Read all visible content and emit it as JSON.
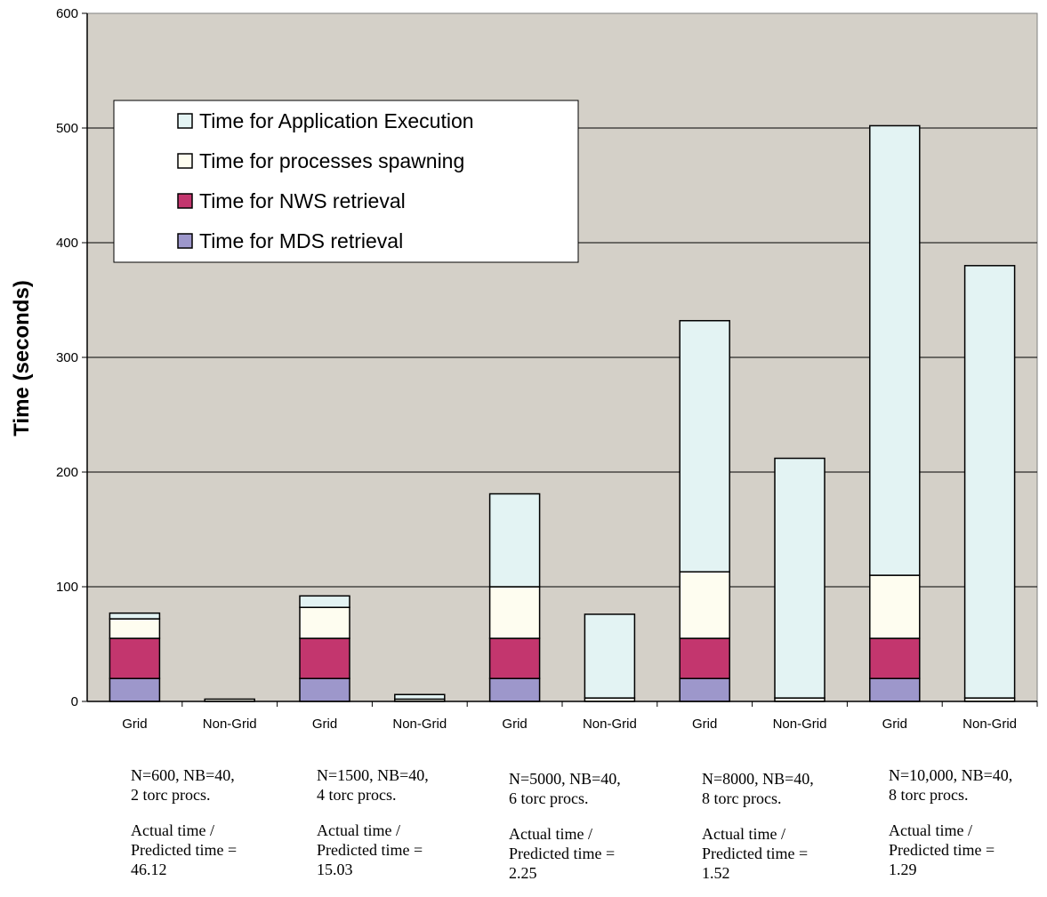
{
  "chart_data": {
    "type": "bar",
    "stacked": true,
    "title": "",
    "xlabel": "",
    "ylabel": "Time (seconds)",
    "ylim": [
      0,
      600
    ],
    "yticks": [
      0,
      100,
      200,
      300,
      400,
      500,
      600
    ],
    "grid": true,
    "legend_position": "top-left",
    "categories": [
      "Grid",
      "Non-Grid",
      "Grid",
      "Non-Grid",
      "Grid",
      "Non-Grid",
      "Grid",
      "Non-Grid",
      "Grid",
      "Non-Grid"
    ],
    "series": [
      {
        "name": "Time for MDS retrieval",
        "color": "#9d97cb",
        "values": [
          20,
          0,
          20,
          0,
          20,
          0,
          20,
          0,
          20,
          0
        ]
      },
      {
        "name": "Time for NWS retrieval",
        "color": "#c3366e",
        "values": [
          35,
          0,
          35,
          0,
          35,
          0,
          35,
          0,
          35,
          0
        ]
      },
      {
        "name": "Time for processes spawning",
        "color": "#fefdf0",
        "values": [
          17,
          2,
          27,
          2,
          45,
          3,
          58,
          3,
          55,
          3
        ]
      },
      {
        "name": "Time for Application Execution",
        "color": "#e3f3f3",
        "values": [
          5,
          0,
          10,
          4,
          81,
          73,
          219,
          209,
          392,
          377
        ]
      }
    ],
    "group_notes": [
      {
        "config": "N=600, NB=40,\n2 torc procs.",
        "ratio": "Actual time /\nPredicted time =\n46.12"
      },
      {
        "config": "N=1500, NB=40,\n4 torc procs.",
        "ratio": "Actual time /\nPredicted time =\n15.03"
      },
      {
        "config": "N=5000, NB=40,\n6 torc procs.",
        "ratio": "Actual time /\nPredicted time =\n2.25"
      },
      {
        "config": "N=8000, NB=40,\n8 torc procs.",
        "ratio": "Actual time /\nPredicted time =\n1.52"
      },
      {
        "config": "N=10,000, NB=40,\n8 torc procs.",
        "ratio": "Actual time /\nPredicted time =\n1.29"
      }
    ],
    "plot_background": "#d4d0c8"
  }
}
